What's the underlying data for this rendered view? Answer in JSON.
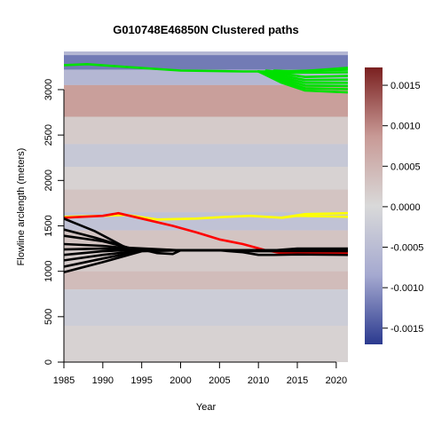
{
  "chart_data": {
    "type": "heatmap",
    "title": "G010748E46850N Clustered paths",
    "xlabel": "Year",
    "ylabel": "Flowline arclength (meters)",
    "xlim": [
      1985,
      2021.5
    ],
    "ylim": [
      0,
      3420
    ],
    "x_ticks": [
      1985,
      1990,
      1995,
      2000,
      2005,
      2010,
      2015,
      2020
    ],
    "y_ticks": [
      0,
      500,
      1000,
      1500,
      2000,
      2500,
      3000
    ],
    "colorbar": {
      "range": [
        -0.0017,
        0.00172
      ],
      "ticks": [
        -0.0015,
        -0.001,
        -0.0005,
        0.0,
        0.0005,
        0.001,
        0.0015
      ],
      "tick_labels": [
        "-0.0015",
        "-0.0010",
        "-0.0005",
        "0.0000",
        "0.0005",
        "0.0010",
        "0.0015"
      ],
      "colors": [
        "#2b3a8f",
        "#a5a9d0",
        "#d9d9d9",
        "#c89a96",
        "#7a2020"
      ]
    },
    "background_bands": [
      {
        "y0": 3380,
        "y1": 3420,
        "value": -0.0006
      },
      {
        "y0": 3220,
        "y1": 3380,
        "value": -0.0012
      },
      {
        "y0": 3050,
        "y1": 3220,
        "value": -0.0006
      },
      {
        "y0": 2700,
        "y1": 3050,
        "value": 0.0008
      },
      {
        "y0": 2400,
        "y1": 2700,
        "value": 0.0002
      },
      {
        "y0": 2150,
        "y1": 2400,
        "value": -0.0003
      },
      {
        "y0": 1900,
        "y1": 2150,
        "value": 0.0001
      },
      {
        "y0": 1650,
        "y1": 1900,
        "value": 0.0003
      },
      {
        "y0": 1450,
        "y1": 1650,
        "value": -0.0004
      },
      {
        "y0": 1250,
        "y1": 1450,
        "value": 0.0003
      },
      {
        "y0": 1000,
        "y1": 1250,
        "value": 0.0002
      },
      {
        "y0": 800,
        "y1": 1000,
        "value": 0.0004
      },
      {
        "y0": 400,
        "y1": 800,
        "value": -0.0002
      },
      {
        "y0": 0,
        "y1": 400,
        "value": 0.0001
      }
    ],
    "series": [
      {
        "color": "#00e000",
        "paths": [
          {
            "x": [
              1985,
              1988,
              1993,
              2000,
              2008,
              2012,
              2021.5
            ],
            "y": [
              3270,
              3280,
              3250,
              3210,
              3200,
              3200,
              3220
            ]
          },
          {
            "x": [
              2010,
              2013,
              2016,
              2021.5
            ],
            "y": [
              3200,
              3175,
              3140,
              3150
            ]
          },
          {
            "x": [
              2010,
              2013,
              2016,
              2021.5
            ],
            "y": [
              3200,
              3155,
              3105,
              3110
            ]
          },
          {
            "x": [
              2010,
              2013,
              2016,
              2021.5
            ],
            "y": [
              3200,
              3135,
              3075,
              3075
            ]
          },
          {
            "x": [
              2010,
              2013,
              2016,
              2021.5
            ],
            "y": [
              3200,
              3115,
              3045,
              3040
            ]
          },
          {
            "x": [
              2010,
              2013,
              2016,
              2021.5
            ],
            "y": [
              3200,
              3095,
              3015,
              3005
            ]
          },
          {
            "x": [
              2010,
              2013,
              2016,
              2021.5
            ],
            "y": [
              3200,
              3075,
              2990,
              2970
            ]
          },
          {
            "x": [
              2011,
              2014,
              2021.5
            ],
            "y": [
              3210,
              3185,
              3190
            ]
          },
          {
            "x": [
              2012,
              2015,
              2021.5
            ],
            "y": [
              3210,
              3200,
              3240
            ]
          }
        ]
      },
      {
        "color": "#ffff00",
        "paths": [
          {
            "x": [
              1985,
              1990,
              1993,
              1997,
              2002,
              2006,
              2009,
              2011,
              2013,
              2015,
              2021.5
            ],
            "y": [
              1600,
              1610,
              1620,
              1570,
              1580,
              1600,
              1610,
              1600,
              1590,
              1610,
              1600
            ]
          },
          {
            "x": [
              2013,
              2016,
              2021.5
            ],
            "y": [
              1590,
              1630,
              1640
            ]
          }
        ]
      },
      {
        "color": "#ff0000",
        "paths": [
          {
            "x": [
              1985,
              1990,
              1992,
              1995,
              1999,
              2002,
              2005,
              2008,
              2011,
              2013,
              2016,
              2021.5
            ],
            "y": [
              1590,
              1610,
              1640,
              1580,
              1500,
              1430,
              1350,
              1300,
              1230,
              1200,
              1200,
              1200
            ]
          }
        ]
      },
      {
        "color": "#000000",
        "paths": [
          {
            "x": [
              1985,
              1989,
              1993,
              2000,
              2005,
              2010,
              2021.5
            ],
            "y": [
              1580,
              1440,
              1260,
              1230,
              1230,
              1230,
              1220
            ]
          },
          {
            "x": [
              1985,
              1989,
              1994,
              2000,
              2005,
              2010,
              2021.5
            ],
            "y": [
              1460,
              1370,
              1240,
              1230,
              1230,
              1220,
              1220
            ]
          },
          {
            "x": [
              1985,
              1990,
              1994,
              2000,
              2021.5
            ],
            "y": [
              1390,
              1330,
              1245,
              1230,
              1230
            ]
          },
          {
            "x": [
              1985,
              1990,
              1995,
              2000,
              2021.5
            ],
            "y": [
              1300,
              1280,
              1240,
              1230,
              1230
            ]
          },
          {
            "x": [
              1985,
              1990,
              1995,
              2000,
              2021.5
            ],
            "y": [
              1240,
              1250,
              1240,
              1230,
              1230
            ]
          },
          {
            "x": [
              1985,
              1990,
              1995,
              2000,
              2021.5
            ],
            "y": [
              1180,
              1220,
              1240,
              1230,
              1230
            ]
          },
          {
            "x": [
              1985,
              1990,
              1995,
              2000,
              2021.5
            ],
            "y": [
              1120,
              1180,
              1230,
              1230,
              1230
            ]
          },
          {
            "x": [
              1985,
              1990,
              1995,
              2000,
              2021.5
            ],
            "y": [
              1050,
              1140,
              1225,
              1230,
              1230
            ]
          },
          {
            "x": [
              1985,
              1990,
              1995,
              2000,
              2021.5
            ],
            "y": [
              990,
              1100,
              1220,
              1230,
              1230
            ]
          },
          {
            "x": [
              1995,
              1997,
              1999,
              2000
            ],
            "y": [
              1240,
              1200,
              1190,
              1230
            ]
          },
          {
            "x": [
              2005,
              2008,
              2010,
              2012,
              2015,
              2021.5
            ],
            "y": [
              1230,
              1210,
              1180,
              1180,
              1185,
              1180
            ]
          },
          {
            "x": [
              2012,
              2015,
              2021.5
            ],
            "y": [
              1230,
              1250,
              1250
            ]
          }
        ]
      }
    ]
  }
}
